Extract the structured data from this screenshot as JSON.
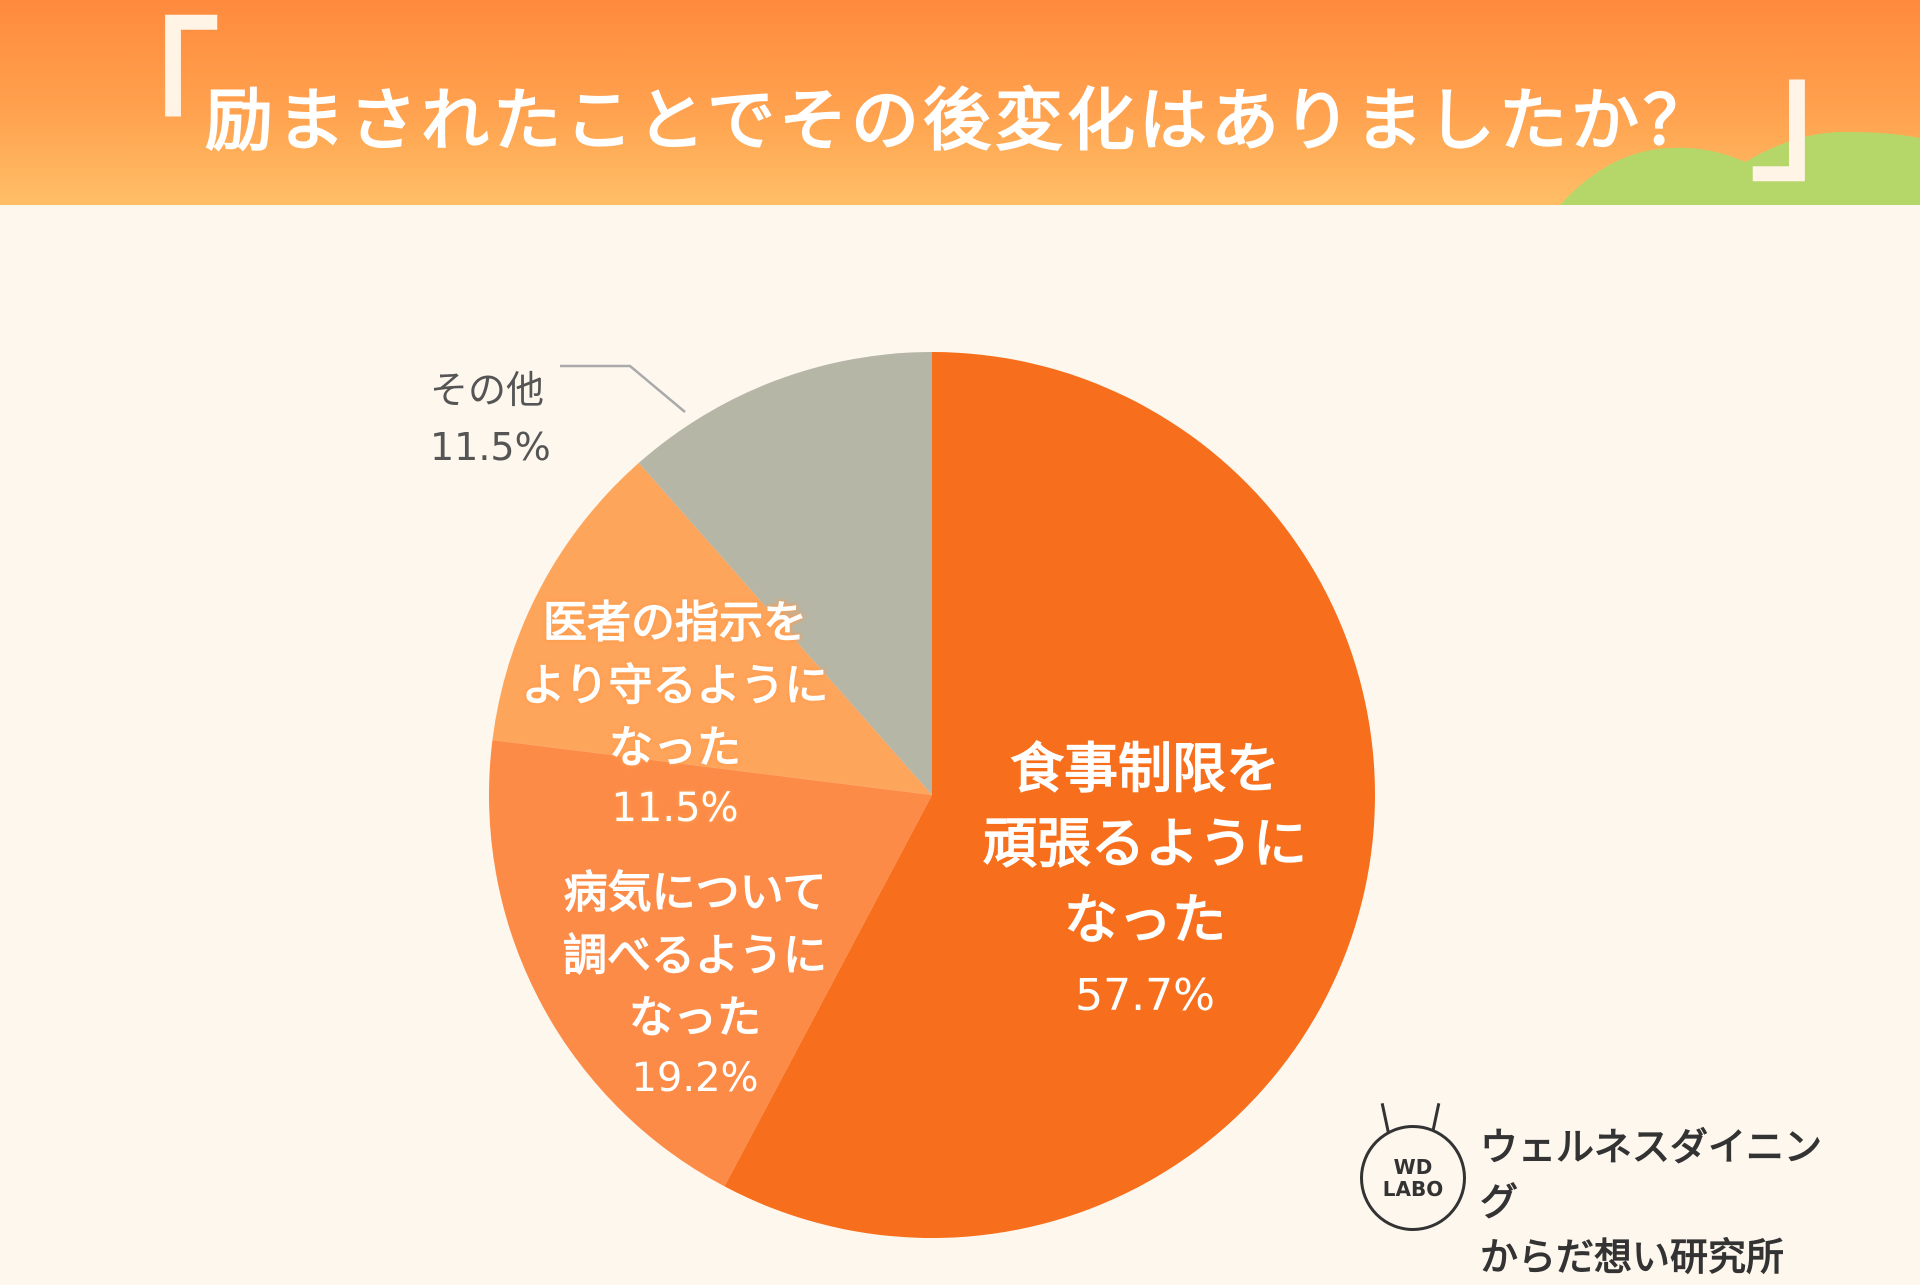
{
  "header": {
    "open_bracket": "「",
    "close_bracket": "」",
    "title": "励まされたことでその後変化はありましたか？"
  },
  "chart_data": {
    "type": "pie",
    "title": "励まされたことでその後変化はありましたか？",
    "slices": [
      {
        "label": "食事制限を\n頑張るように\nなった",
        "value": 57.7,
        "pct": "57.7%",
        "color": "#f76f1c"
      },
      {
        "label": "病気について\n調べるように\nなった",
        "value": 19.2,
        "pct": "19.2%",
        "color": "#fc8b48"
      },
      {
        "label": "医者の指示を\nより守るように\nなった",
        "value": 11.5,
        "pct": "11.5%",
        "color": "#fea55c"
      },
      {
        "label": "その他",
        "value": 11.5,
        "pct": "11.5%",
        "color": "#b6b6a6"
      }
    ],
    "start": "12 o'clock",
    "direction": "clockwise",
    "leader_line_color": "#aaaaaa"
  },
  "logo": {
    "badge_line1": "WD",
    "badge_line2": "LABO",
    "name_line1": "ウェルネスダイニング",
    "name_line2": "からだ想い研究所"
  },
  "colors": {
    "background": "#fdf7ee",
    "header_top": "#ff8a3d",
    "header_bottom": "#ffbe66",
    "hill": "#b5d76a"
  }
}
